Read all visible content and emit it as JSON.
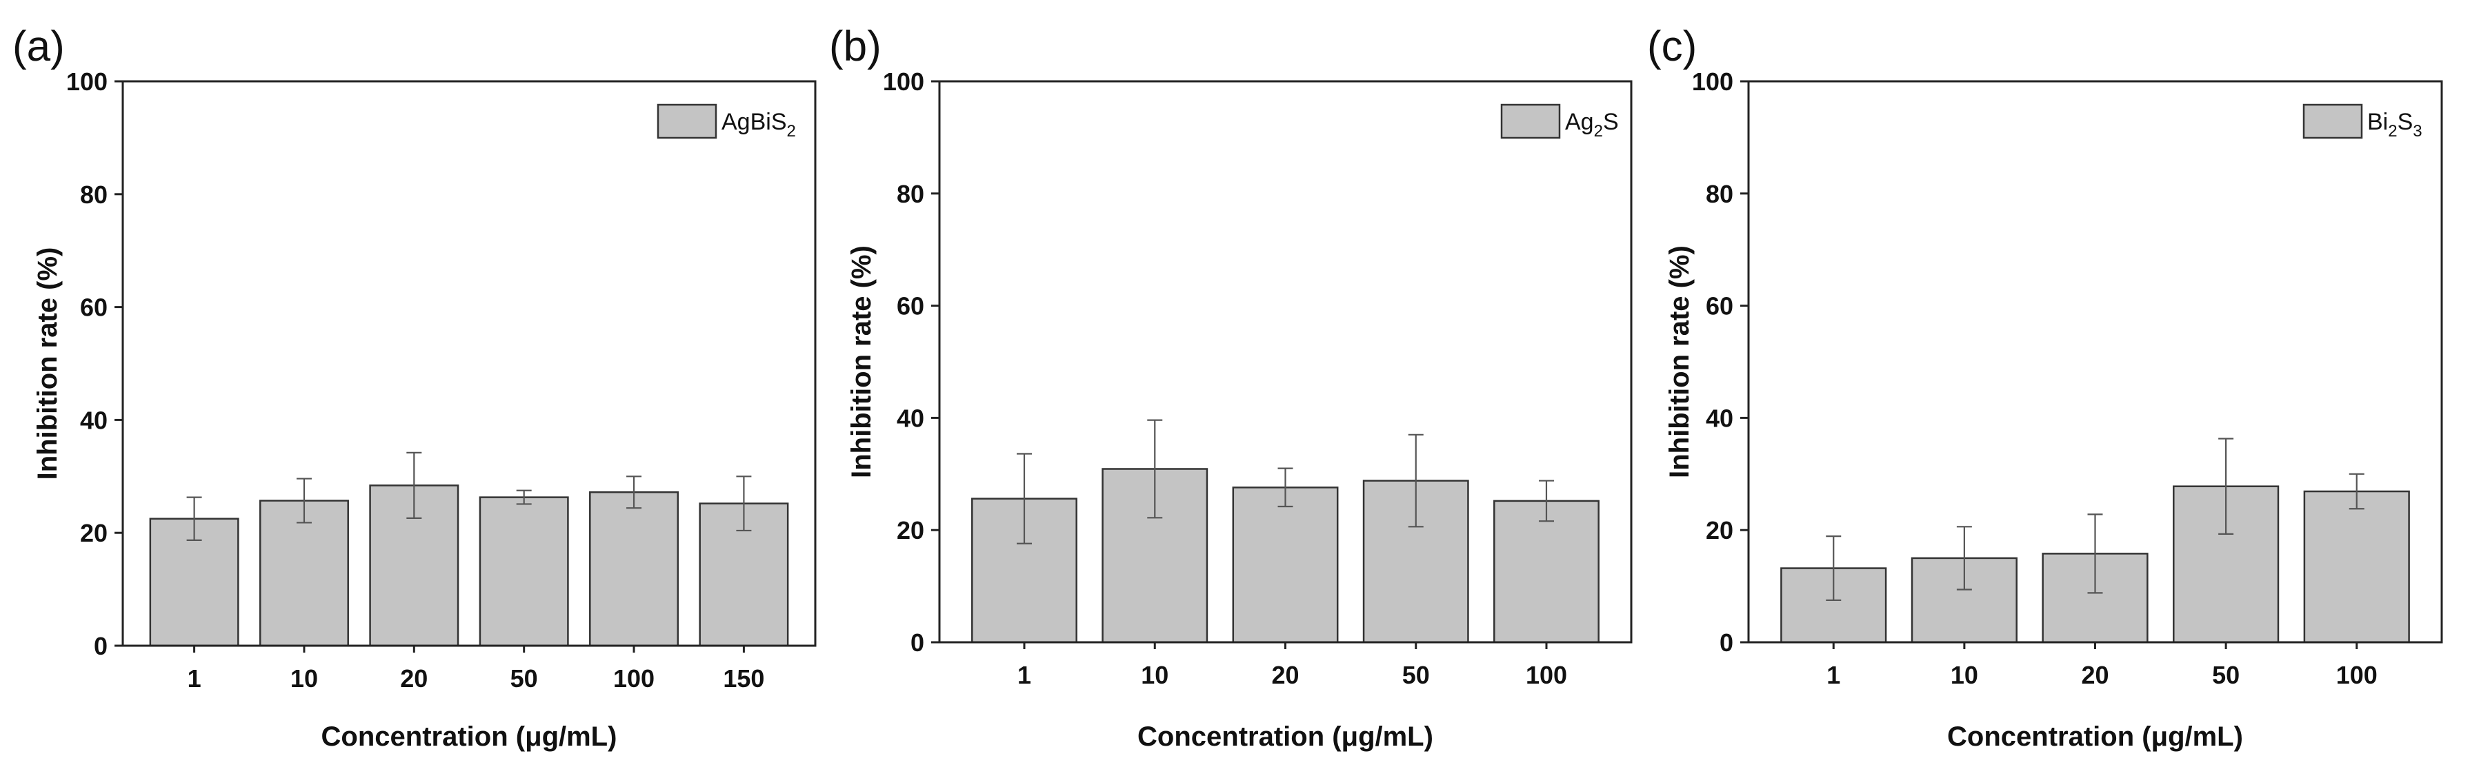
{
  "chart_data": [
    {
      "type": "bar",
      "panel_label": "(a)",
      "xlabel": "Concentration (μg/mL)",
      "ylabel": "Inhibition rate (%)",
      "ylim": [
        0,
        100
      ],
      "yticks": [
        0,
        20,
        40,
        60,
        80,
        100
      ],
      "legend": {
        "base": "AgBiS",
        "sub": "2",
        "after": "",
        "placement": "top-right"
      },
      "categories": [
        "1",
        "10",
        "20",
        "50",
        "100",
        "150"
      ],
      "values": [
        22.5,
        25.7,
        28.4,
        26.3,
        27.2,
        25.2
      ],
      "errors": [
        3.8,
        3.9,
        5.8,
        1.2,
        2.8,
        4.8
      ]
    },
    {
      "type": "bar",
      "panel_label": "(b)",
      "xlabel": "Concentration (μg/mL)",
      "ylabel": "Inhibition rate (%)",
      "ylim": [
        0,
        100
      ],
      "yticks": [
        0,
        20,
        40,
        60,
        80,
        100
      ],
      "legend": {
        "base": "Ag",
        "sub": "2",
        "after": "S",
        "placement": "top-right"
      },
      "categories": [
        "1",
        "10",
        "20",
        "50",
        "100"
      ],
      "values": [
        25.6,
        30.9,
        27.6,
        28.8,
        25.2
      ],
      "errors": [
        8.0,
        8.7,
        3.4,
        8.2,
        3.6
      ]
    },
    {
      "type": "bar",
      "panel_label": "(c)",
      "xlabel": "Concentration (μg/mL)",
      "ylabel": "Inhibition rate (%)",
      "ylim": [
        0,
        100
      ],
      "yticks": [
        0,
        20,
        40,
        60,
        80,
        100
      ],
      "legend": {
        "base": "Bi",
        "sub": "2",
        "after": "S",
        "sub2": "3",
        "placement": "top-right"
      },
      "categories": [
        "1",
        "10",
        "20",
        "50",
        "100"
      ],
      "values": [
        13.2,
        15.0,
        15.8,
        27.8,
        26.9
      ],
      "errors": [
        5.7,
        5.6,
        7.0,
        8.5,
        3.1
      ]
    }
  ]
}
